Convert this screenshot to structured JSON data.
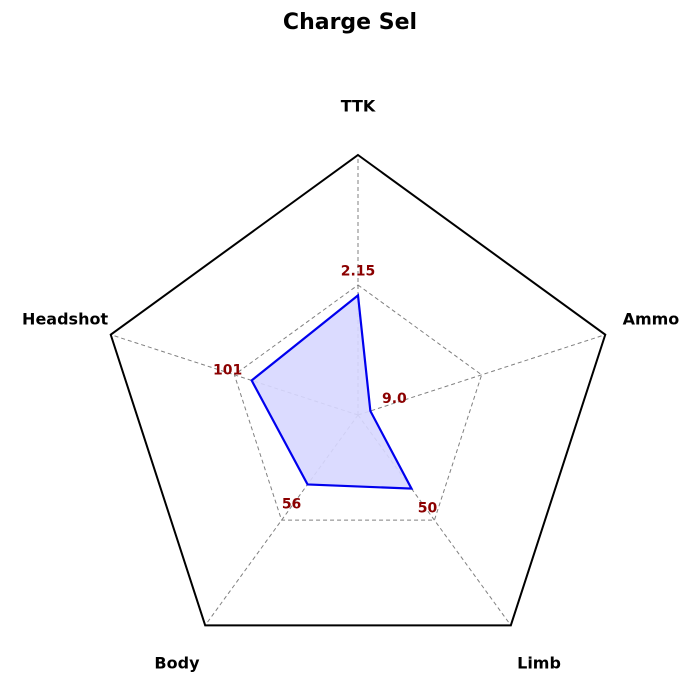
{
  "chart_data": {
    "type": "radar",
    "title": "Charge Sel",
    "axes": [
      "TTK",
      "Ammo",
      "Limb",
      "Body",
      "Headshot"
    ],
    "series": [
      {
        "values": [
          0.46,
          0.05,
          0.35,
          0.33,
          0.43
        ],
        "value_labels": [
          "2.15",
          "9.0",
          "50",
          "56",
          "101"
        ],
        "line_color": "#0000ee",
        "fill_color": "#d7d7ff"
      }
    ],
    "outer_border_color": "#000000",
    "grid_color": "#808080",
    "label_color": "#8b0000"
  }
}
